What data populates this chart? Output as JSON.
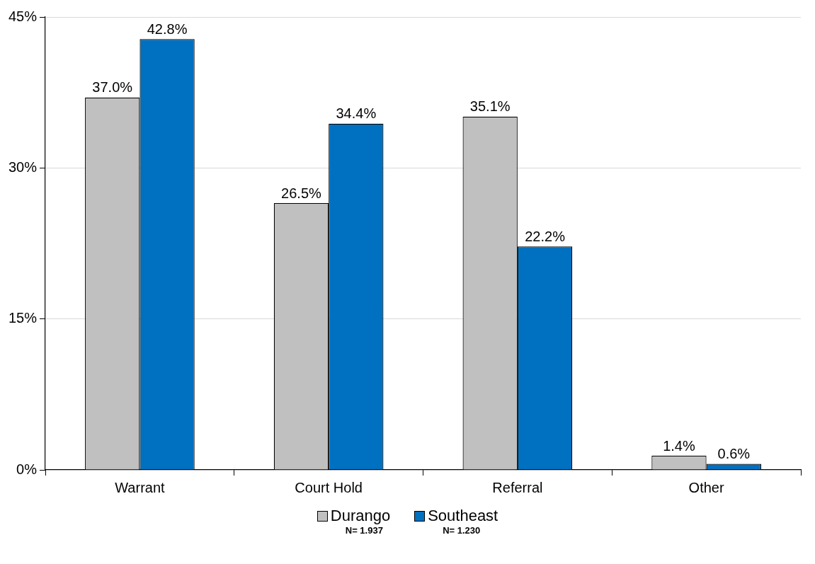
{
  "chart_data": {
    "type": "bar",
    "categories": [
      "Warrant",
      "Court Hold",
      "Referral",
      "Other"
    ],
    "series": [
      {
        "name": "Durango",
        "color": "#c0c0c0",
        "values": [
          37.0,
          26.5,
          35.1,
          1.4
        ],
        "value_labels": [
          "37.0%",
          "26.5%",
          "35.1%",
          "1.4%"
        ]
      },
      {
        "name": "Southeast",
        "color": "#0070c0",
        "values": [
          42.8,
          34.4,
          22.2,
          0.6
        ],
        "value_labels": [
          "42.8%",
          "34.4%",
          "22.2%",
          "0.6%"
        ]
      }
    ],
    "ylim": [
      0,
      45
    ],
    "yticks": [
      {
        "value": 0,
        "label": "0%"
      },
      {
        "value": 15,
        "label": "15%"
      },
      {
        "value": 30,
        "label": "30%"
      },
      {
        "value": 45,
        "label": "45%"
      }
    ],
    "grid": "y",
    "legend": "bottom",
    "annotations": [
      "N= 1.937",
      "N= 1.230"
    ]
  }
}
